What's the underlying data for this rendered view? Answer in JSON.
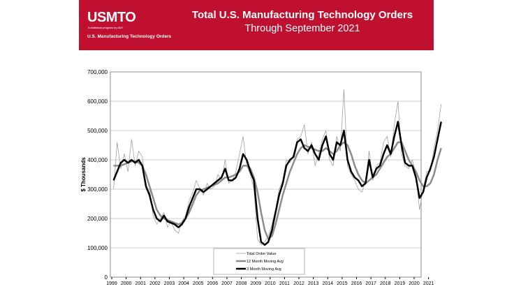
{
  "banner": {
    "logo": "USMTO",
    "logo_subtitle": "A statistical program by AMT",
    "logo_tagline": "U.S. Manufacturing Technology Orders",
    "title": "Total U.S. Manufacturing Technology Orders",
    "subtitle": "Through September 2021",
    "color": "#c0102f"
  },
  "chart_data": {
    "type": "line",
    "title": "Total U.S. Manufacturing Technology Orders",
    "subtitle": "Through September 2021",
    "ylabel": "$ Thousands",
    "xlabel": "",
    "ylim": [
      0,
      700000
    ],
    "yticks": [
      "0",
      "100,000",
      "200,000",
      "300,000",
      "400,000",
      "500,000",
      "600,000",
      "700,000"
    ],
    "xticks": [
      "1999",
      "2000",
      "2001",
      "2002",
      "2003",
      "2004",
      "2005",
      "2006",
      "2007",
      "2008",
      "2009",
      "2010",
      "2011",
      "2012",
      "2013",
      "2014",
      "2015",
      "2016",
      "2017",
      "2018",
      "2019",
      "2020",
      "2021"
    ],
    "x_resolution": "quarterly, 1999 Q1 - 2021 Q3",
    "legend_position": "bottom-center",
    "grid": "horizontal",
    "series": [
      {
        "name": "Total Order Value",
        "color": "#a0a0a0",
        "values": [
          300,
          460,
          370,
          420,
          360,
          470,
          380,
          430,
          410,
          300,
          300,
          210,
          180,
          200,
          220,
          170,
          190,
          160,
          150,
          190,
          210,
          260,
          290,
          330,
          300,
          280,
          320,
          300,
          310,
          350,
          330,
          400,
          320,
          330,
          360,
          420,
          480,
          380,
          350,
          300,
          130,
          110,
          120,
          140,
          180,
          230,
          300,
          330,
          400,
          390,
          420,
          470,
          480,
          520,
          420,
          460,
          380,
          420,
          470,
          500,
          400,
          380,
          480,
          430,
          640,
          380,
          350,
          330,
          300,
          290,
          330,
          430,
          330,
          380,
          390,
          460,
          480,
          410,
          520,
          600,
          420,
          380,
          370,
          400,
          350,
          230,
          300,
          360,
          360,
          440,
          500,
          590
        ]
      },
      {
        "name": "12 Month Moving Avg",
        "color": "#8c8c8c",
        "values": [
          380,
          380,
          380,
          385,
          390,
          395,
          395,
          390,
          380,
          350,
          310,
          270,
          230,
          210,
          200,
          195,
          190,
          185,
          180,
          185,
          200,
          220,
          250,
          280,
          295,
          300,
          305,
          310,
          315,
          320,
          330,
          340,
          340,
          345,
          350,
          360,
          380,
          380,
          370,
          340,
          290,
          220,
          160,
          130,
          140,
          180,
          230,
          280,
          320,
          360,
          390,
          420,
          440,
          450,
          445,
          440,
          435,
          430,
          430,
          440,
          430,
          420,
          430,
          450,
          460,
          450,
          420,
          380,
          350,
          330,
          320,
          330,
          340,
          350,
          370,
          390,
          410,
          420,
          440,
          460,
          460,
          430,
          400,
          380,
          360,
          330,
          310,
          310,
          320,
          350,
          400,
          440
        ]
      },
      {
        "name": "3 Month Moving Avg",
        "color": "#000000",
        "values": [
          330,
          360,
          390,
          400,
          390,
          400,
          390,
          400,
          380,
          310,
          280,
          230,
          200,
          190,
          210,
          190,
          185,
          180,
          170,
          180,
          200,
          240,
          270,
          300,
          300,
          290,
          300,
          310,
          320,
          330,
          340,
          370,
          330,
          330,
          340,
          370,
          420,
          400,
          360,
          330,
          200,
          120,
          110,
          120,
          160,
          220,
          280,
          320,
          380,
          400,
          410,
          460,
          470,
          440,
          430,
          450,
          420,
          400,
          450,
          480,
          420,
          400,
          460,
          450,
          500,
          400,
          360,
          340,
          330,
          310,
          320,
          400,
          340,
          370,
          380,
          420,
          450,
          420,
          480,
          530,
          450,
          390,
          380,
          380,
          340,
          270,
          290,
          340,
          370,
          410,
          470,
          530
        ]
      }
    ],
    "value_unit_note": "values in $ thousands (x1000 shown on axis)"
  }
}
